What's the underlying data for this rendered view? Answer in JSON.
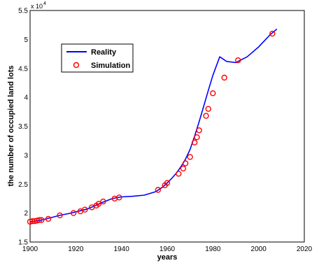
{
  "chart_data": {
    "type": "line",
    "xlabel": "years",
    "ylabel": "the number of occupied land lots",
    "xlim": [
      1900,
      2020
    ],
    "ylim": [
      1.5,
      5.5
    ],
    "y_multiplier": "x 10",
    "y_multiplier_exponent": "4",
    "x_ticks": [
      "1900",
      "1920",
      "1940",
      "1960",
      "1980",
      "2000",
      "2020"
    ],
    "y_ticks": [
      "1.5",
      "2",
      "2.5",
      "3",
      "3.5",
      "4",
      "4.5",
      "5",
      "5.5"
    ],
    "legend_position": "top-left",
    "series": [
      {
        "name": "Reality",
        "style": "line",
        "color": "#0000ff",
        "x": [
          1900,
          1902,
          1905,
          1908,
          1913,
          1918,
          1922,
          1925,
          1928,
          1932,
          1936,
          1940,
          1945,
          1950,
          1955,
          1958,
          1960,
          1962,
          1964,
          1966,
          1968,
          1970,
          1972,
          1974,
          1976,
          1978,
          1980,
          1983,
          1986,
          1990,
          1995,
          2000,
          2005,
          2008
        ],
        "y": [
          1.85,
          1.86,
          1.88,
          1.91,
          1.96,
          2.0,
          2.04,
          2.07,
          2.12,
          2.19,
          2.25,
          2.28,
          2.29,
          2.31,
          2.37,
          2.45,
          2.52,
          2.6,
          2.69,
          2.8,
          2.93,
          3.1,
          3.33,
          3.58,
          3.85,
          4.12,
          4.38,
          4.7,
          4.62,
          4.6,
          4.7,
          4.87,
          5.08,
          5.18
        ]
      },
      {
        "name": "Simulation",
        "style": "markers",
        "color": "#ff0000",
        "x": [
          1900,
          1901,
          1902,
          1903,
          1904,
          1905,
          1908,
          1913,
          1919,
          1922,
          1924,
          1927,
          1929,
          1930,
          1932,
          1937,
          1939,
          1956,
          1959,
          1960,
          1965,
          1967,
          1968,
          1970,
          1972,
          1973,
          1974,
          1977,
          1978,
          1980,
          1985,
          1991,
          2006
        ],
        "y": [
          1.85,
          1.86,
          1.86,
          1.87,
          1.88,
          1.88,
          1.9,
          1.96,
          2.0,
          2.03,
          2.06,
          2.1,
          2.13,
          2.16,
          2.2,
          2.25,
          2.27,
          2.4,
          2.48,
          2.52,
          2.68,
          2.77,
          2.86,
          2.97,
          3.22,
          3.31,
          3.43,
          3.68,
          3.8,
          4.07,
          4.34,
          4.64,
          5.1
        ]
      }
    ]
  }
}
